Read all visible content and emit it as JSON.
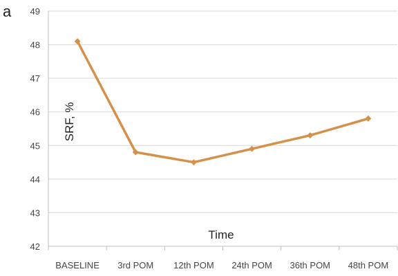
{
  "panel_label": "a",
  "chart_data": {
    "type": "line",
    "categories": [
      "BASELINE",
      "3rd POM",
      "12th POM",
      "24th POM",
      "36th POM",
      "48th POM"
    ],
    "series": [
      {
        "values": [
          48.1,
          44.8,
          44.5,
          44.9,
          45.3,
          45.8
        ],
        "color": "#d4914a"
      }
    ],
    "xlabel": "Time",
    "ylabel": "SRF, %",
    "ylim": [
      42,
      49
    ],
    "yticks": [
      42,
      43,
      44,
      45,
      46,
      47,
      48,
      49
    ],
    "grid": "horizontal",
    "legend": "none",
    "marker": "diamond"
  }
}
